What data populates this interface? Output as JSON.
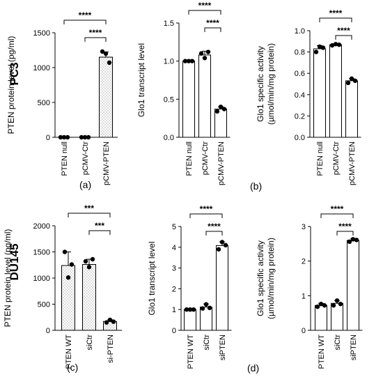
{
  "row_labels": [
    "PC3",
    "DU145"
  ],
  "panel_labels": [
    "(a)",
    "(b)",
    "(c)",
    "(d)"
  ],
  "chart_data": [
    {
      "type": "bar",
      "row": "PC3",
      "categories": [
        "PTEN null",
        "pCMV-Ctr",
        "pCMV-PTEN"
      ],
      "values": [
        0,
        0,
        1150
      ],
      "errors": [
        0,
        0,
        75
      ],
      "points": [
        [
          0,
          0,
          0
        ],
        [
          0,
          0,
          0
        ],
        [
          1230,
          1200,
          1070
        ]
      ],
      "patterned_bars": [
        0,
        1,
        2
      ],
      "ylabel": "PTEN protein level (pg/ml)",
      "ylim": [
        0,
        1500
      ],
      "yticks": [
        0,
        500,
        1000,
        1500
      ],
      "significance": [
        {
          "from": 1,
          "to": 2,
          "label": "****"
        },
        {
          "from": 0,
          "to": 2,
          "label": "****"
        }
      ]
    },
    {
      "type": "bar",
      "row": "PC3",
      "categories": [
        "PTEN null",
        "pCMV-Ctr",
        "pCMV-PTEN"
      ],
      "values": [
        1.0,
        1.08,
        0.37
      ],
      "errors": [
        0,
        0.05,
        0.03
      ],
      "points": [
        [
          1.0,
          1.0,
          1.0
        ],
        [
          1.1,
          1.04,
          1.12
        ],
        [
          0.34,
          0.4,
          0.37
        ]
      ],
      "patterned_bars": [],
      "ylabel": "Glo1 transcript level",
      "ylim": [
        0,
        1.5
      ],
      "yticks": [
        "0.0",
        "0.5",
        "1.0",
        "1.5"
      ],
      "significance": [
        {
          "from": 1,
          "to": 2,
          "label": "****"
        },
        {
          "from": 0,
          "to": 2,
          "label": "****"
        }
      ]
    },
    {
      "type": "bar",
      "row": "PC3",
      "categories": [
        "PTEN null",
        "pCMV-Ctr",
        "pCMV-PTEN"
      ],
      "values": [
        0.83,
        0.868,
        0.53
      ],
      "errors": [
        0.03,
        0.006,
        0.02
      ],
      "points": [
        [
          0.8,
          0.85,
          0.84
        ],
        [
          0.862,
          0.874,
          0.868
        ],
        [
          0.51,
          0.55,
          0.53
        ]
      ],
      "patterned_bars": [],
      "ylabel": [
        "Glo1 specific activity",
        "(µmol/min/mg protein)"
      ],
      "ylim": [
        0,
        1.0
      ],
      "yticks": [
        "0.0",
        "0.2",
        "0.4",
        "0.6",
        "0.8",
        "1.0"
      ],
      "significance": [
        {
          "from": 1,
          "to": 2,
          "label": "****"
        },
        {
          "from": 0,
          "to": 2,
          "label": "****"
        }
      ]
    },
    {
      "type": "bar",
      "row": "DU145",
      "categories": [
        "PTEN WT",
        "siCtr",
        "si-PTEN"
      ],
      "values": [
        1240,
        1260,
        170
      ],
      "errors": [
        260,
        100,
        30
      ],
      "points": [
        [
          1500,
          1010,
          1260
        ],
        [
          1320,
          1210,
          1360
        ],
        [
          150,
          200,
          165
        ]
      ],
      "patterned_bars": [
        0,
        1,
        2
      ],
      "ylabel": "PTEN protein level (pg/ml)",
      "ylim": [
        0,
        2000
      ],
      "yticks": [
        0,
        500,
        1000,
        1500,
        2000
      ],
      "significance": [
        {
          "from": 1,
          "to": 2,
          "label": "***"
        },
        {
          "from": 0,
          "to": 2,
          "label": "***"
        }
      ]
    },
    {
      "type": "bar",
      "row": "DU145",
      "categories": [
        "PTEN WT",
        "siCtr",
        "siPTEN"
      ],
      "values": [
        1.0,
        1.12,
        4.08
      ],
      "errors": [
        0,
        0.15,
        0.18
      ],
      "points": [
        [
          1.0,
          1.0,
          1.0
        ],
        [
          1.05,
          1.25,
          1.08
        ],
        [
          3.9,
          4.25,
          4.1
        ]
      ],
      "patterned_bars": [],
      "ylabel": "Glo1 transcript level",
      "ylim": [
        0,
        5
      ],
      "yticks": [
        0,
        1,
        2,
        3,
        4,
        5
      ],
      "significance": [
        {
          "from": 1,
          "to": 2,
          "label": "****"
        },
        {
          "from": 0,
          "to": 2,
          "label": "****"
        }
      ]
    },
    {
      "type": "bar",
      "row": "DU145",
      "categories": [
        "PTEN WT",
        "siCtr",
        "siPTEN"
      ],
      "values": [
        0.72,
        0.78,
        2.6
      ],
      "errors": [
        0.06,
        0.08,
        0.05
      ],
      "points": [
        [
          0.68,
          0.76,
          0.72
        ],
        [
          0.72,
          0.86,
          0.76
        ],
        [
          2.56,
          2.63,
          2.61
        ]
      ],
      "patterned_bars": [],
      "ylabel": [
        "Glo1 specific activity",
        "(µmol/min/mg protein)"
      ],
      "ylim": [
        0,
        3
      ],
      "yticks": [
        0,
        1,
        2,
        3
      ],
      "significance": [
        {
          "from": 1,
          "to": 2,
          "label": "****"
        },
        {
          "from": 0,
          "to": 2,
          "label": "****"
        }
      ]
    }
  ]
}
